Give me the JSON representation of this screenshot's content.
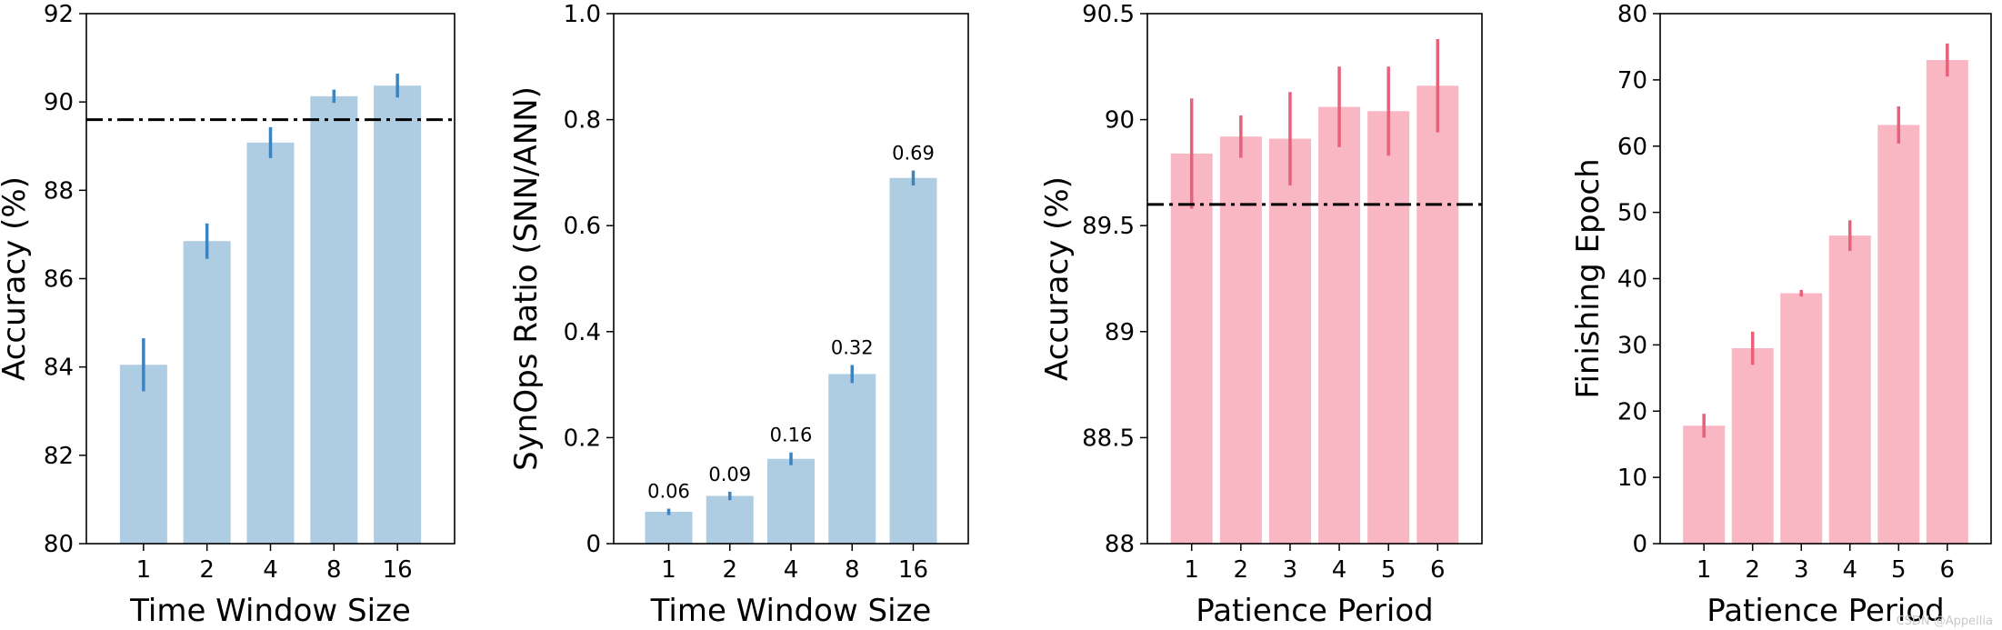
{
  "colors": {
    "blue_bar": "#aecde3",
    "blue_err": "#3d84bf",
    "pink_bar": "#f9b6c3",
    "pink_err": "#e8607a",
    "reference": "#000000"
  },
  "watermark": "CSDN @Appellia",
  "chart_data": [
    {
      "type": "bar",
      "categories": [
        "1",
        "2",
        "4",
        "8",
        "16"
      ],
      "values": [
        84.05,
        86.85,
        89.08,
        90.13,
        90.37
      ],
      "errors": [
        0.6,
        0.4,
        0.35,
        0.15,
        0.27
      ],
      "xlabel": "Time Window Size",
      "ylabel": "Accuracy (%)",
      "ylim": [
        80,
        92
      ],
      "yticks": [
        80,
        82,
        84,
        86,
        88,
        90,
        92
      ],
      "ytick_labels": [
        "80",
        "82",
        "84",
        "86",
        "88",
        "90",
        "92"
      ],
      "reference_line": 89.6,
      "color": "blue",
      "grid": false
    },
    {
      "type": "bar",
      "categories": [
        "1",
        "2",
        "4",
        "8",
        "16"
      ],
      "values": [
        0.06,
        0.09,
        0.16,
        0.32,
        0.69
      ],
      "errors": [
        0.006,
        0.008,
        0.012,
        0.017,
        0.014
      ],
      "data_labels": [
        "0.06",
        "0.09",
        "0.16",
        "0.32",
        "0.69"
      ],
      "xlabel": "Time Window Size",
      "ylabel": "SynOps Ratio (SNN/ANN)",
      "ylim": [
        0,
        1.0
      ],
      "yticks": [
        0,
        0.2,
        0.4,
        0.6,
        0.8,
        1.0
      ],
      "ytick_labels": [
        "0",
        "0.2",
        "0.4",
        "0.6",
        "0.8",
        "1.0"
      ],
      "color": "blue",
      "grid": false
    },
    {
      "type": "bar",
      "categories": [
        "1",
        "2",
        "3",
        "4",
        "5",
        "6"
      ],
      "values": [
        89.84,
        89.92,
        89.91,
        90.06,
        90.04,
        90.16
      ],
      "errors": [
        0.26,
        0.1,
        0.22,
        0.19,
        0.21,
        0.22
      ],
      "xlabel": "Patience Period",
      "ylabel": "Accuracy (%)",
      "ylim": [
        88,
        90.5
      ],
      "yticks": [
        88,
        88.5,
        89,
        89.5,
        90,
        90.5
      ],
      "ytick_labels": [
        "88",
        "88.5",
        "89",
        "89.5",
        "90",
        "90.5"
      ],
      "reference_line": 89.6,
      "color": "pink",
      "grid": false
    },
    {
      "type": "bar",
      "categories": [
        "1",
        "2",
        "3",
        "4",
        "5",
        "6"
      ],
      "values": [
        17.8,
        29.5,
        37.8,
        46.5,
        63.2,
        73.0
      ],
      "errors": [
        1.8,
        2.5,
        0.5,
        2.3,
        2.8,
        2.5
      ],
      "xlabel": "Patience Period",
      "ylabel": "Finishing Epoch",
      "ylim": [
        0,
        80
      ],
      "yticks": [
        0,
        10,
        20,
        30,
        40,
        50,
        60,
        70,
        80
      ],
      "ytick_labels": [
        "0",
        "10",
        "20",
        "30",
        "40",
        "50",
        "60",
        "70",
        "80"
      ],
      "color": "pink",
      "grid": false
    }
  ]
}
